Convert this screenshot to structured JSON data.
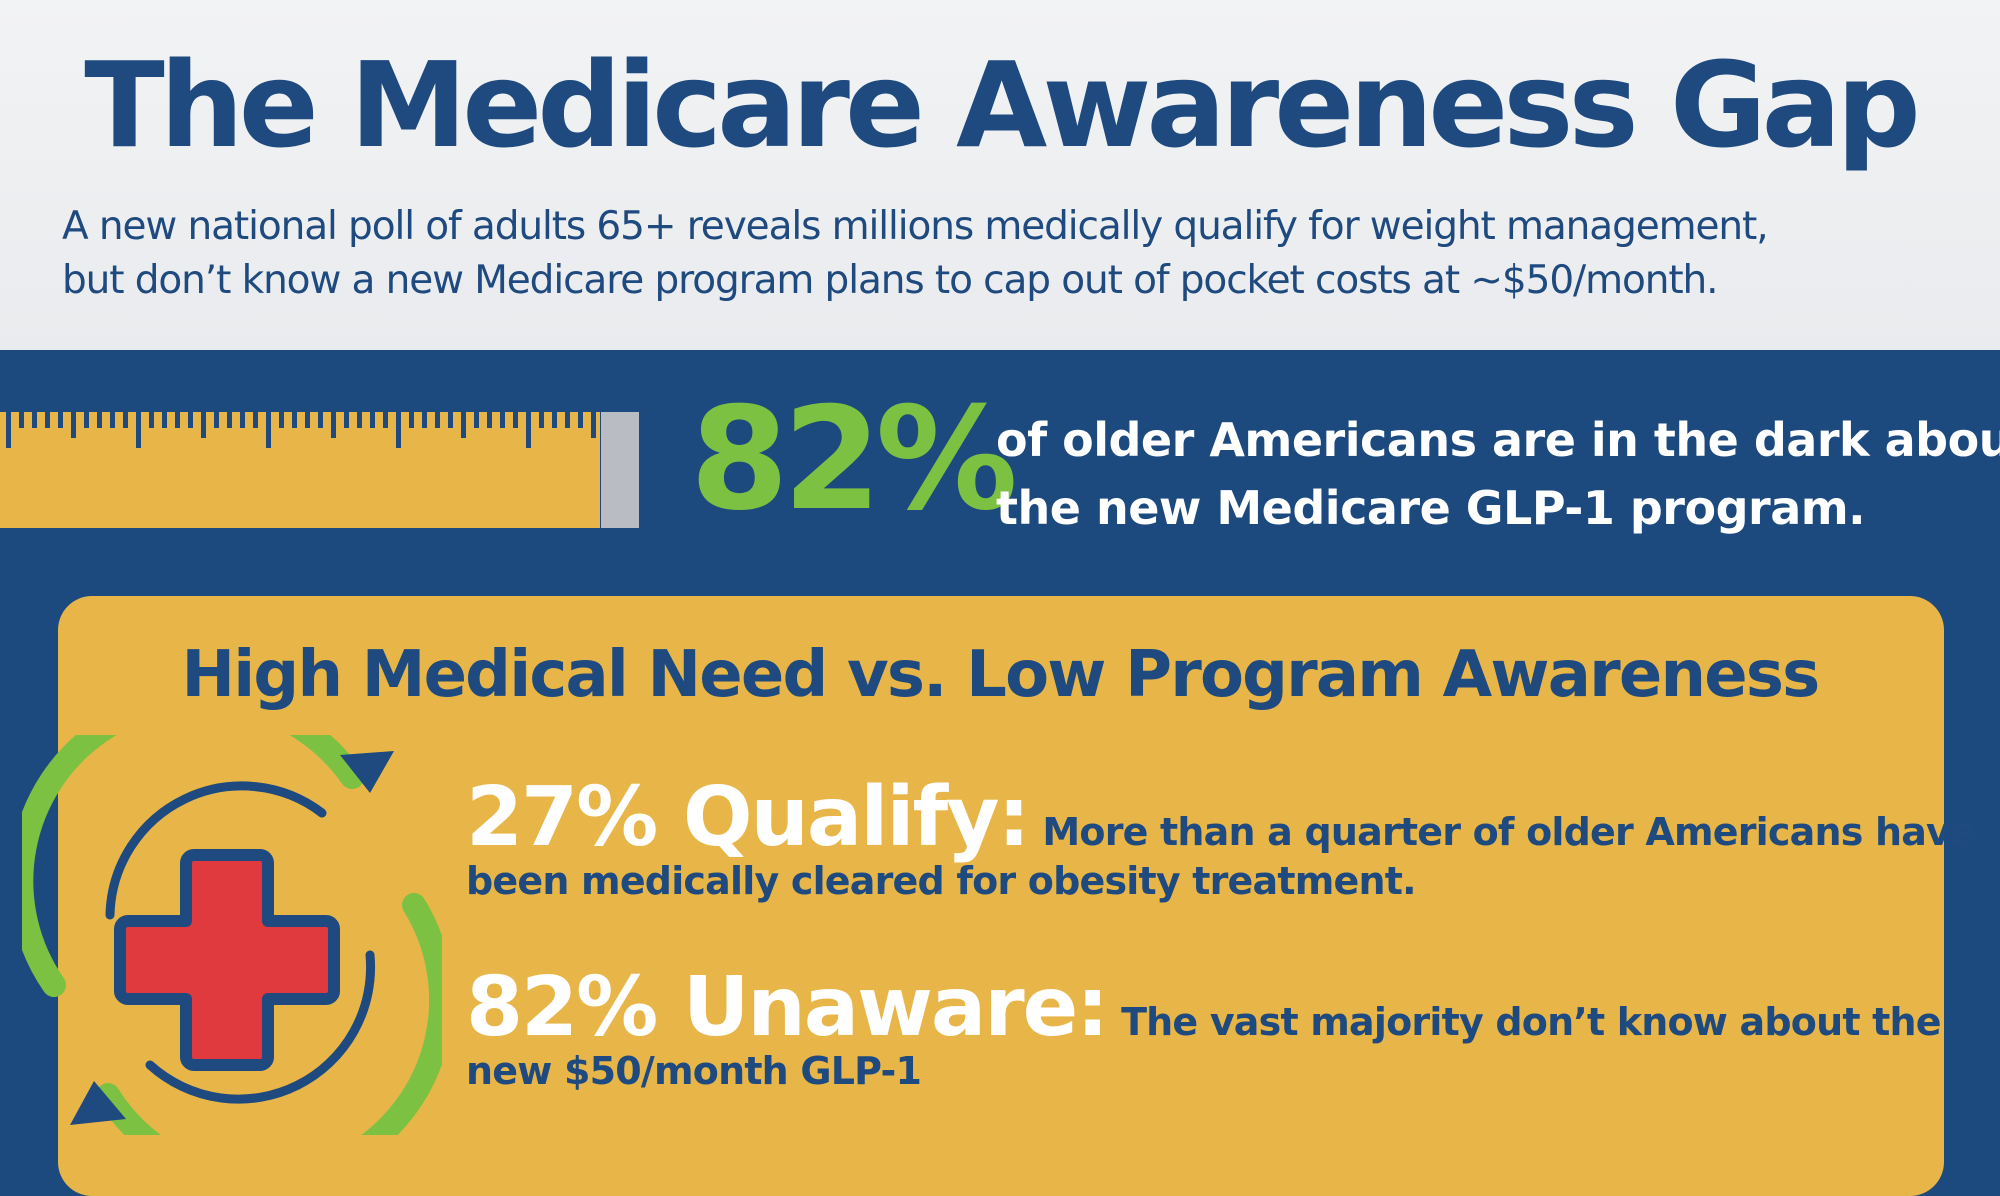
{
  "header": {
    "title": "The Medicare Awareness Gap",
    "subtitle_line1": "A new national poll of adults 65+ reveals millions medically qualify for weight management,",
    "subtitle_line2": "but don’t know a new Medicare program plans to cap out of pocket costs at ~$50/month."
  },
  "highlight": {
    "stat": "82%",
    "text_line1": "of older Americans are in the dark about",
    "text_line2": "the new Medicare GLP-1 program."
  },
  "panel": {
    "title": "High Medical Need vs. Low Program Awareness",
    "items": [
      {
        "lead": "27% Qualify:",
        "text_line1": "More than a quarter of older Americans have",
        "text_line2": "been medically cleared for obesity treatment."
      },
      {
        "lead": "82% Unaware:",
        "text_line1": "The vast majority don’t know about the",
        "text_line2": "new $50/month GLP-1"
      }
    ]
  },
  "icons": {
    "ruler": "ruler-icon",
    "medical": "medical-cross-icon"
  },
  "colors": {
    "navy": "#1e4a7f",
    "gold": "#e8b648",
    "green": "#7dc142",
    "red": "#e03a3e",
    "header_bg": "#eef0f2"
  }
}
